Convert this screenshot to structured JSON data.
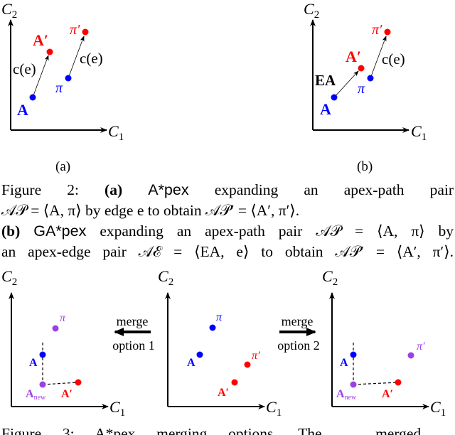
{
  "colors": {
    "blue": "#0000ff",
    "red": "#ff0000",
    "purple": "#9d3fe6",
    "axis": "#000000"
  },
  "axes": {
    "x": "C",
    "x_sub": "1",
    "y": "C",
    "y_sub": "2"
  },
  "fig_a": {
    "A": "A",
    "A_prime": "A′",
    "pi": "π",
    "pi_prime": "π′",
    "edge_label_1": "c(e)",
    "edge_label_2": "c(e)",
    "sublabel": "(a)"
  },
  "fig_b": {
    "A": "A",
    "A_prime": "A′",
    "pi": "π",
    "pi_prime": "π′",
    "EA": "EA",
    "edge_label": "c(e)",
    "sublabel": "(b)"
  },
  "fig3": {
    "left": {
      "pi": "π",
      "A": "A",
      "A_new": "A",
      "A_new_sub": "new",
      "A_prime": "A′"
    },
    "middle": {
      "pi": "π",
      "A": "A",
      "pi_prime": "π′",
      "A_prime": "A′"
    },
    "right": {
      "pi_prime": "π′",
      "A": "A",
      "A_new": "A",
      "A_new_sub": "new",
      "A_prime": "A′"
    },
    "merge1": {
      "line1": "merge",
      "line2": "option 1"
    },
    "merge2": {
      "line1": "merge",
      "line2": "option 2"
    }
  },
  "caption": {
    "l1_fig": "Figure 2:",
    "l1_a": "(a)",
    "l1_alg": "A*pex",
    "l1_rest": "expanding an apex-path pair",
    "l2": "𝒜𝒫 = ⟨A, π⟩ by edge e to obtain 𝒜𝒫′ = ⟨A′, π′⟩.",
    "l3_b": "(b)",
    "l3_alg": "GA*pex",
    "l3_rest": "expanding an apex-path pair 𝒜𝒫 = ⟨A, π⟩ by",
    "l4": "an apex-edge pair 𝒜ℰ = ⟨EA, e⟩ to obtain 𝒜𝒫′ = ⟨A′, π′⟩."
  },
  "caption3_partial": "Figure 3: A*pex merging options. The ... merged ... "
}
